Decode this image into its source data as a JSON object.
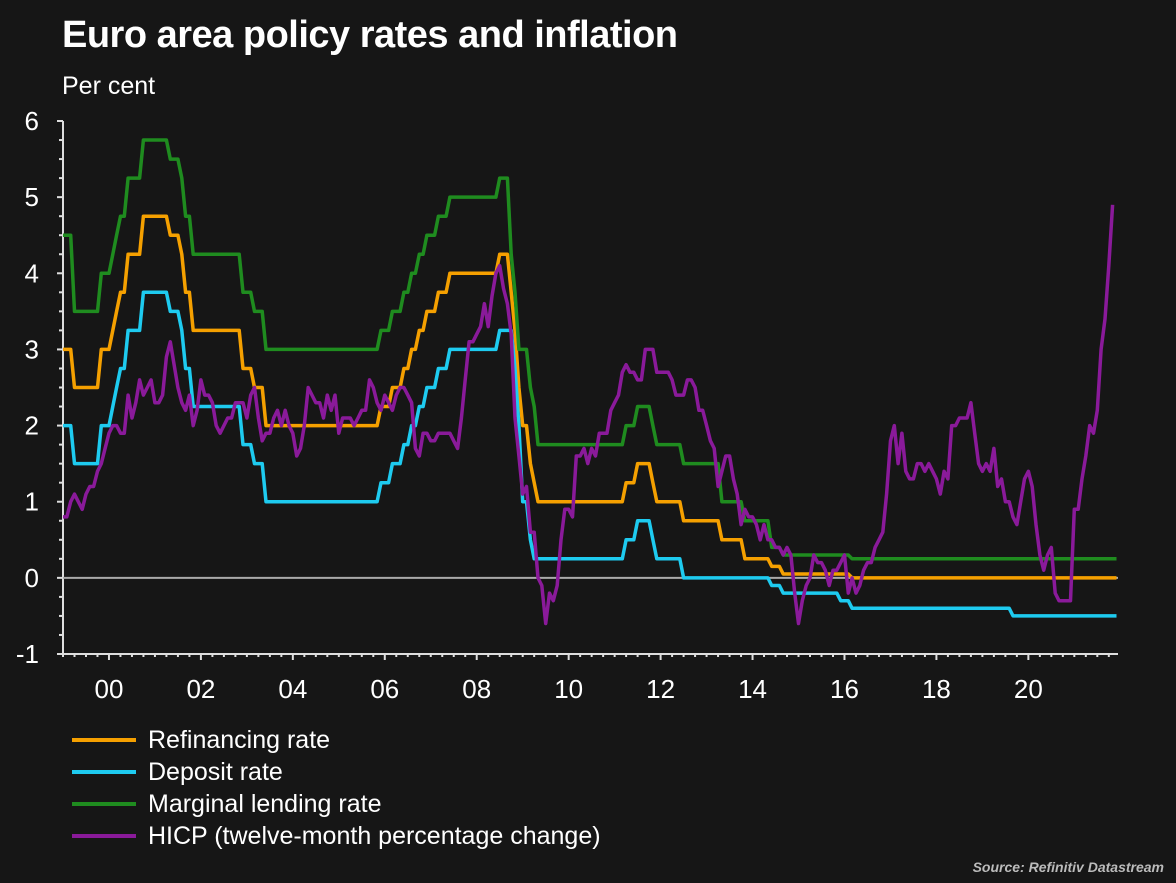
{
  "chart_data": {
    "type": "line",
    "title": "Euro area policy rates and inflation",
    "ylabel": "Per cent",
    "ylim": [
      -1,
      6
    ],
    "yticks": [
      -1,
      0,
      1,
      2,
      3,
      4,
      5,
      6
    ],
    "xlim": [
      1999.0,
      2021.95
    ],
    "xticks": [
      {
        "year": 2000,
        "label": "00"
      },
      {
        "year": 2002,
        "label": "02"
      },
      {
        "year": 2004,
        "label": "04"
      },
      {
        "year": 2006,
        "label": "06"
      },
      {
        "year": 2008,
        "label": "08"
      },
      {
        "year": 2010,
        "label": "10"
      },
      {
        "year": 2012,
        "label": "12"
      },
      {
        "year": 2014,
        "label": "14"
      },
      {
        "year": 2016,
        "label": "16"
      },
      {
        "year": 2018,
        "label": "18"
      },
      {
        "year": 2020,
        "label": "20"
      }
    ],
    "source": "Source: Refinitiv Datastream",
    "series": [
      {
        "name": "Refinancing rate",
        "color": "#f5a000",
        "kind": "steps",
        "end": "2021-12",
        "steps": [
          [
            "1999-01",
            3.0
          ],
          [
            "1999-04",
            2.5
          ],
          [
            "1999-11",
            3.0
          ],
          [
            "2000-02",
            3.25
          ],
          [
            "2000-03",
            3.5
          ],
          [
            "2000-04",
            3.75
          ],
          [
            "2000-06",
            4.25
          ],
          [
            "2000-10",
            4.75
          ],
          [
            "2001-05",
            4.5
          ],
          [
            "2001-08",
            4.25
          ],
          [
            "2001-09",
            3.75
          ],
          [
            "2001-11",
            3.25
          ],
          [
            "2002-12",
            2.75
          ],
          [
            "2003-03",
            2.5
          ],
          [
            "2003-06",
            2.0
          ],
          [
            "2005-12",
            2.25
          ],
          [
            "2006-03",
            2.5
          ],
          [
            "2006-06",
            2.75
          ],
          [
            "2006-08",
            3.0
          ],
          [
            "2006-10",
            3.25
          ],
          [
            "2006-12",
            3.5
          ],
          [
            "2007-03",
            3.75
          ],
          [
            "2007-06",
            4.0
          ],
          [
            "2008-07",
            4.25
          ],
          [
            "2008-10",
            3.75
          ],
          [
            "2008-11",
            3.25
          ],
          [
            "2008-12",
            2.5
          ],
          [
            "2009-01",
            2.0
          ],
          [
            "2009-03",
            1.5
          ],
          [
            "2009-04",
            1.25
          ],
          [
            "2009-05",
            1.0
          ],
          [
            "2011-04",
            1.25
          ],
          [
            "2011-07",
            1.5
          ],
          [
            "2011-11",
            1.25
          ],
          [
            "2011-12",
            1.0
          ],
          [
            "2012-07",
            0.75
          ],
          [
            "2013-05",
            0.5
          ],
          [
            "2013-11",
            0.25
          ],
          [
            "2014-06",
            0.15
          ],
          [
            "2014-09",
            0.05
          ],
          [
            "2016-03",
            0.0
          ]
        ]
      },
      {
        "name": "Deposit rate",
        "color": "#1ecbf0",
        "kind": "steps",
        "end": "2021-12",
        "steps": [
          [
            "1999-01",
            2.0
          ],
          [
            "1999-04",
            1.5
          ],
          [
            "1999-11",
            2.0
          ],
          [
            "2000-02",
            2.25
          ],
          [
            "2000-03",
            2.5
          ],
          [
            "2000-04",
            2.75
          ],
          [
            "2000-06",
            3.25
          ],
          [
            "2000-10",
            3.75
          ],
          [
            "2001-05",
            3.5
          ],
          [
            "2001-08",
            3.25
          ],
          [
            "2001-09",
            2.75
          ],
          [
            "2001-11",
            2.25
          ],
          [
            "2002-12",
            1.75
          ],
          [
            "2003-03",
            1.5
          ],
          [
            "2003-06",
            1.0
          ],
          [
            "2005-12",
            1.25
          ],
          [
            "2006-03",
            1.5
          ],
          [
            "2006-06",
            1.75
          ],
          [
            "2006-08",
            2.0
          ],
          [
            "2006-10",
            2.25
          ],
          [
            "2006-12",
            2.5
          ],
          [
            "2007-03",
            2.75
          ],
          [
            "2007-06",
            3.0
          ],
          [
            "2008-07",
            3.25
          ],
          [
            "2008-10",
            3.25
          ],
          [
            "2008-11",
            2.75
          ],
          [
            "2008-12",
            2.0
          ],
          [
            "2009-01",
            1.0
          ],
          [
            "2009-03",
            0.5
          ],
          [
            "2009-04",
            0.25
          ],
          [
            "2011-04",
            0.5
          ],
          [
            "2011-07",
            0.75
          ],
          [
            "2011-11",
            0.5
          ],
          [
            "2011-12",
            0.25
          ],
          [
            "2012-07",
            0.0
          ],
          [
            "2014-06",
            -0.1
          ],
          [
            "2014-09",
            -0.2
          ],
          [
            "2015-12",
            -0.3
          ],
          [
            "2016-03",
            -0.4
          ],
          [
            "2019-09",
            -0.5
          ]
        ]
      },
      {
        "name": "Marginal lending rate",
        "color": "#1f8c1f",
        "kind": "steps",
        "end": "2021-12",
        "steps": [
          [
            "1999-01",
            4.5
          ],
          [
            "1999-04",
            3.5
          ],
          [
            "1999-11",
            4.0
          ],
          [
            "2000-02",
            4.25
          ],
          [
            "2000-03",
            4.5
          ],
          [
            "2000-04",
            4.75
          ],
          [
            "2000-06",
            5.25
          ],
          [
            "2000-10",
            5.75
          ],
          [
            "2001-05",
            5.5
          ],
          [
            "2001-08",
            5.25
          ],
          [
            "2001-09",
            4.75
          ],
          [
            "2001-11",
            4.25
          ],
          [
            "2002-12",
            3.75
          ],
          [
            "2003-03",
            3.5
          ],
          [
            "2003-06",
            3.0
          ],
          [
            "2005-12",
            3.25
          ],
          [
            "2006-03",
            3.5
          ],
          [
            "2006-06",
            3.75
          ],
          [
            "2006-08",
            4.0
          ],
          [
            "2006-10",
            4.25
          ],
          [
            "2006-12",
            4.5
          ],
          [
            "2007-03",
            4.75
          ],
          [
            "2007-06",
            5.0
          ],
          [
            "2008-07",
            5.25
          ],
          [
            "2008-10",
            4.25
          ],
          [
            "2008-11",
            3.75
          ],
          [
            "2008-12",
            3.0
          ],
          [
            "2009-03",
            2.5
          ],
          [
            "2009-04",
            2.25
          ],
          [
            "2009-05",
            1.75
          ],
          [
            "2011-04",
            2.0
          ],
          [
            "2011-07",
            2.25
          ],
          [
            "2011-11",
            2.0
          ],
          [
            "2011-12",
            1.75
          ],
          [
            "2012-07",
            1.5
          ],
          [
            "2013-05",
            1.0
          ],
          [
            "2013-11",
            0.75
          ],
          [
            "2014-06",
            0.4
          ],
          [
            "2014-09",
            0.3
          ],
          [
            "2016-03",
            0.25
          ]
        ]
      },
      {
        "name": "HICP (twelve-month percentage change)",
        "color": "#8a1a9a",
        "kind": "monthly",
        "start": "1999-01",
        "values": [
          0.8,
          0.8,
          1.0,
          1.1,
          1.0,
          0.9,
          1.1,
          1.2,
          1.2,
          1.4,
          1.5,
          1.7,
          1.9,
          2.0,
          2.0,
          1.9,
          1.9,
          2.4,
          2.1,
          2.3,
          2.6,
          2.4,
          2.5,
          2.6,
          2.3,
          2.3,
          2.4,
          2.9,
          3.1,
          2.8,
          2.5,
          2.3,
          2.2,
          2.4,
          2.0,
          2.2,
          2.6,
          2.4,
          2.4,
          2.3,
          2.0,
          1.9,
          2.0,
          2.1,
          2.1,
          2.3,
          2.3,
          2.3,
          2.1,
          2.4,
          2.5,
          2.1,
          1.8,
          1.9,
          1.9,
          2.1,
          2.2,
          2.0,
          2.2,
          2.0,
          1.9,
          1.6,
          1.7,
          2.0,
          2.5,
          2.4,
          2.3,
          2.3,
          2.1,
          2.4,
          2.2,
          2.4,
          1.9,
          2.1,
          2.1,
          2.1,
          2.0,
          2.1,
          2.2,
          2.2,
          2.6,
          2.5,
          2.3,
          2.2,
          2.4,
          2.3,
          2.2,
          2.4,
          2.5,
          2.5,
          2.4,
          2.3,
          1.7,
          1.6,
          1.9,
          1.9,
          1.8,
          1.8,
          1.9,
          1.9,
          1.9,
          1.9,
          1.8,
          1.7,
          2.1,
          2.6,
          3.1,
          3.1,
          3.2,
          3.3,
          3.6,
          3.3,
          3.7,
          4.0,
          4.1,
          3.8,
          3.6,
          3.2,
          2.1,
          1.6,
          1.1,
          1.2,
          0.6,
          0.6,
          0.0,
          -0.1,
          -0.6,
          -0.2,
          -0.3,
          -0.1,
          0.5,
          0.9,
          0.9,
          0.8,
          1.6,
          1.6,
          1.7,
          1.5,
          1.7,
          1.6,
          1.9,
          1.9,
          1.9,
          2.2,
          2.3,
          2.4,
          2.7,
          2.8,
          2.7,
          2.7,
          2.6,
          2.6,
          3.0,
          3.0,
          3.0,
          2.7,
          2.7,
          2.7,
          2.7,
          2.6,
          2.4,
          2.4,
          2.4,
          2.6,
          2.6,
          2.5,
          2.2,
          2.2,
          2.0,
          1.8,
          1.7,
          1.2,
          1.4,
          1.6,
          1.6,
          1.3,
          1.1,
          0.7,
          0.9,
          0.8,
          0.8,
          0.7,
          0.5,
          0.7,
          0.5,
          0.5,
          0.4,
          0.4,
          0.3,
          0.4,
          0.3,
          -0.2,
          -0.6,
          -0.3,
          -0.1,
          0.0,
          0.3,
          0.2,
          0.2,
          0.1,
          -0.1,
          0.1,
          0.1,
          0.2,
          0.3,
          -0.2,
          0.0,
          -0.2,
          -0.1,
          0.1,
          0.2,
          0.2,
          0.4,
          0.5,
          0.6,
          1.1,
          1.8,
          2.0,
          1.5,
          1.9,
          1.4,
          1.3,
          1.3,
          1.5,
          1.5,
          1.4,
          1.5,
          1.4,
          1.3,
          1.1,
          1.4,
          1.3,
          2.0,
          2.0,
          2.1,
          2.1,
          2.1,
          2.3,
          1.9,
          1.5,
          1.4,
          1.5,
          1.4,
          1.7,
          1.2,
          1.3,
          1.0,
          1.0,
          0.8,
          0.7,
          1.0,
          1.3,
          1.4,
          1.2,
          0.7,
          0.3,
          0.1,
          0.3,
          0.4,
          -0.2,
          -0.3,
          -0.3,
          -0.3,
          -0.3,
          0.9,
          0.9,
          1.3,
          1.6,
          2.0,
          1.9,
          2.2,
          3.0,
          3.4,
          4.1,
          4.9
        ]
      }
    ]
  }
}
